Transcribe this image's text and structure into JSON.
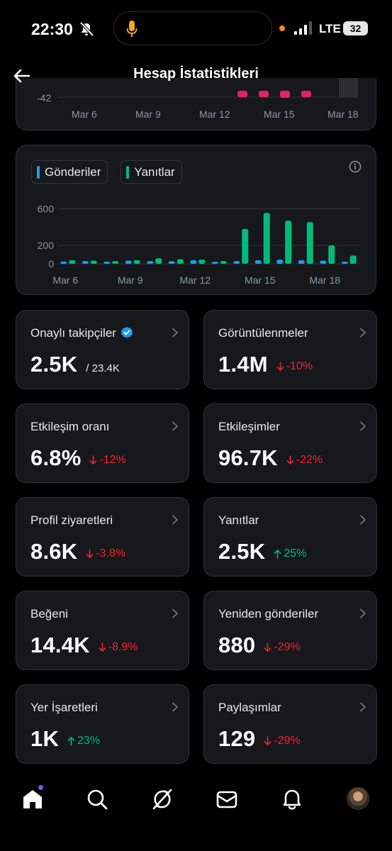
{
  "status_bar": {
    "time": "22:30",
    "network": "LTE",
    "battery": "32"
  },
  "header": {
    "title": "Hesap İstatistikleri"
  },
  "top_chart": {
    "ytick_visible": "-42",
    "xticks": [
      "Mar 6",
      "Mar 9",
      "Mar 12",
      "Mar 15",
      "Mar 18"
    ]
  },
  "chart_data": {
    "type": "bar",
    "categories": [
      "Mar 6",
      "Mar 7",
      "Mar 8",
      "Mar 9",
      "Mar 10",
      "Mar 11",
      "Mar 12",
      "Mar 13",
      "Mar 14",
      "Mar 15",
      "Mar 16",
      "Mar 17",
      "Mar 18",
      "Mar 19"
    ],
    "xticks": [
      "Mar 6",
      "Mar 9",
      "Mar 12",
      "Mar 15",
      "Mar 18"
    ],
    "series": [
      {
        "name": "Gönderiler",
        "color": "#1d9bf0",
        "values": [
          25,
          30,
          22,
          35,
          30,
          28,
          40,
          20,
          30,
          40,
          45,
          40,
          35,
          15
        ]
      },
      {
        "name": "Yanıtlar",
        "color": "#00ba7c",
        "values": [
          40,
          35,
          30,
          40,
          60,
          50,
          45,
          30,
          380,
          555,
          470,
          455,
          200,
          90
        ]
      }
    ],
    "yticks": [
      0,
      200,
      600
    ],
    "ylim": [
      0,
      650
    ],
    "grid": true,
    "legend": "top-left"
  },
  "stats": [
    {
      "label": "Onaylı takipçiler",
      "value": "2.5K",
      "sub": "/ 23.4K",
      "verified": true
    },
    {
      "label": "Görüntülenmeler",
      "value": "1.4M",
      "delta": "-10%",
      "dir": "down"
    },
    {
      "label": "Etkileşim oranı",
      "value": "6.8%",
      "delta": "-12%",
      "dir": "down"
    },
    {
      "label": "Etkileşimler",
      "value": "96.7K",
      "delta": "-22%",
      "dir": "down"
    },
    {
      "label": "Profil ziyaretleri",
      "value": "8.6K",
      "delta": "-3.8%",
      "dir": "down"
    },
    {
      "label": "Yanıtlar",
      "value": "2.5K",
      "delta": "25%",
      "dir": "up"
    },
    {
      "label": "Beğeni",
      "value": "14.4K",
      "delta": "-8.9%",
      "dir": "down"
    },
    {
      "label": "Yeniden gönderiler",
      "value": "880",
      "delta": "-29%",
      "dir": "down"
    },
    {
      "label": "Yer İşaretleri",
      "value": "1K",
      "delta": "23%",
      "dir": "up"
    },
    {
      "label": "Paylaşımlar",
      "value": "129",
      "delta": "-29%",
      "dir": "down"
    }
  ],
  "bottom_nav": [
    "home-icon",
    "search-icon",
    "grok-icon",
    "messages-icon",
    "notifications-icon",
    "profile-avatar"
  ]
}
